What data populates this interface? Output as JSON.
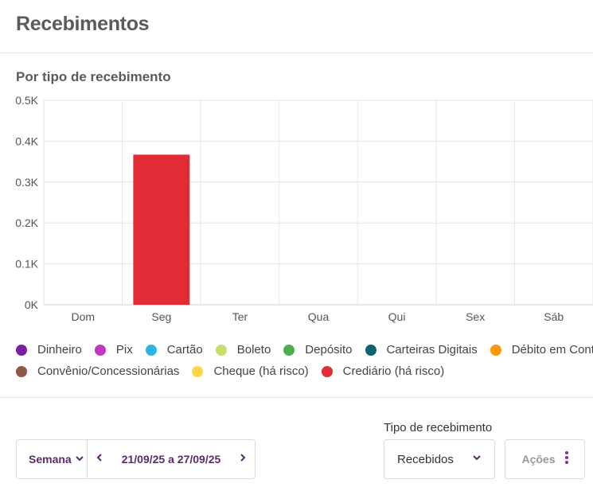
{
  "page": {
    "title": "Recebimentos"
  },
  "chart_section": {
    "title": "Por tipo de recebimento"
  },
  "chart_data": {
    "type": "bar",
    "title": "Por tipo de recebimento",
    "categories": [
      "Dom",
      "Seg",
      "Ter",
      "Qua",
      "Qui",
      "Sex",
      "Sáb"
    ],
    "y_ticks": [
      "0K",
      "0.1K",
      "0.2K",
      "0.3K",
      "0.4K",
      "0.5K"
    ],
    "ylim": [
      0,
      500
    ],
    "grid": true,
    "legend_position": "bottom",
    "series": [
      {
        "name": "Dinheiro",
        "color": "#7b1fa2",
        "values": [
          0,
          0,
          0,
          0,
          0,
          0,
          0
        ]
      },
      {
        "name": "Pix",
        "color": "#c237c2",
        "values": [
          0,
          0,
          0,
          0,
          0,
          0,
          0
        ]
      },
      {
        "name": "Cartão",
        "color": "#29b6e0",
        "values": [
          0,
          0,
          0,
          0,
          0,
          0,
          0
        ]
      },
      {
        "name": "Boleto",
        "color": "#c5e068",
        "values": [
          0,
          0,
          0,
          0,
          0,
          0,
          0
        ]
      },
      {
        "name": "Depósito",
        "color": "#4caf50",
        "values": [
          0,
          0,
          0,
          0,
          0,
          0,
          0
        ]
      },
      {
        "name": "Carteiras Digitais",
        "color": "#0d6370",
        "values": [
          0,
          0,
          0,
          0,
          0,
          0,
          0
        ]
      },
      {
        "name": "Débito em Conta",
        "color": "#ff9800",
        "values": [
          0,
          0,
          0,
          0,
          0,
          0,
          0
        ]
      },
      {
        "name": "Convênio/Concessionárias",
        "color": "#8d5a45",
        "values": [
          0,
          0,
          0,
          0,
          0,
          0,
          0
        ]
      },
      {
        "name": "Cheque (há risco)",
        "color": "#fdd44a",
        "values": [
          0,
          0,
          0,
          0,
          0,
          0,
          0
        ]
      },
      {
        "name": "Crediário (há risco)",
        "color": "#e32b36",
        "values": [
          0,
          367,
          0,
          0,
          0,
          0,
          0
        ]
      }
    ]
  },
  "legend": {
    "rows": [
      [
        {
          "label": "Dinheiro",
          "color": "#7b1fa2"
        },
        {
          "label": "Pix",
          "color": "#c237c2"
        },
        {
          "label": "Cartão",
          "color": "#29b6e0"
        },
        {
          "label": "Boleto",
          "color": "#c5e068"
        },
        {
          "label": "Depósito",
          "color": "#4caf50"
        },
        {
          "label": "Carteiras Digitais",
          "color": "#0d6370"
        },
        {
          "label": "Débito em Conta",
          "color": "#ff9800"
        }
      ],
      [
        {
          "label": "Convênio/Concessionárias",
          "color": "#8d5a45"
        },
        {
          "label": "Cheque (há risco)",
          "color": "#fdd44a"
        },
        {
          "label": "Crediário (há risco)",
          "color": "#e32b36"
        }
      ]
    ]
  },
  "controls": {
    "period_label": "Semana",
    "date_range": "21/09/25 a 27/09/25",
    "type_label": "Tipo de recebimento",
    "type_value": "Recebidos",
    "actions_label": "Ações",
    "accent_color": "#5c2a6e"
  }
}
